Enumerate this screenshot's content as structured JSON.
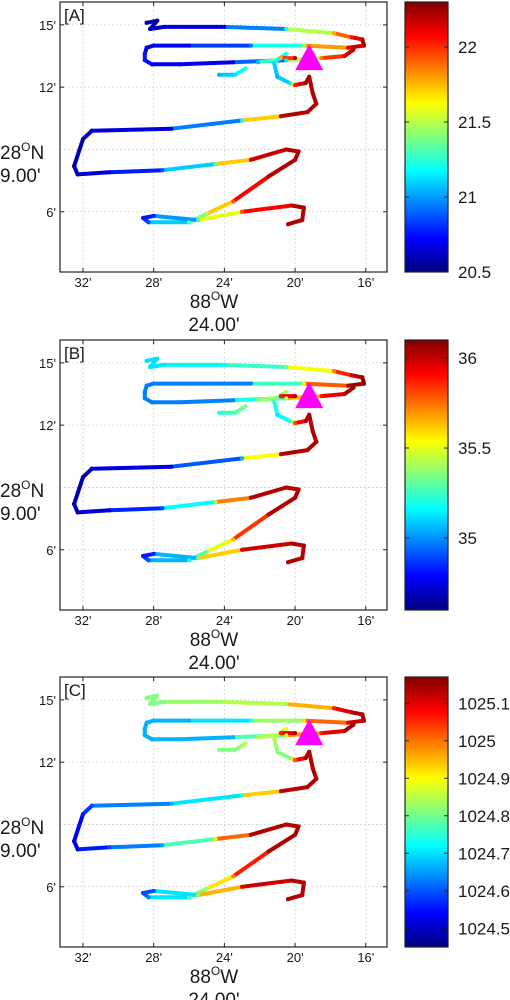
{
  "figure": {
    "panels": [
      {
        "label": "[A]",
        "colorbar_ticks": [
          "22",
          "21.5",
          "21",
          "20.5"
        ]
      },
      {
        "label": "[B]",
        "colorbar_ticks": [
          "36",
          "35.5",
          "35"
        ]
      },
      {
        "label": "[C]",
        "colorbar_ticks": [
          "1025.1",
          "1025",
          "1024.9",
          "1024.8",
          "1024.7",
          "1024.6",
          "1024.5"
        ]
      }
    ],
    "y_ticks": [
      "15'",
      "12'",
      "6'"
    ],
    "x_ticks": [
      "32'",
      "28'",
      "24'",
      "20'",
      "16'"
    ],
    "lat_label": {
      "main": "28",
      "sup": "O",
      "dir": "N",
      "sub": "9.00'"
    },
    "lon_label": {
      "main": "88",
      "sup": "O",
      "dir": "W",
      "sub": "24.00'"
    },
    "marker_color": "#ff00ff",
    "colormap": "jet"
  },
  "chart_data": [
    {
      "type": "scatter",
      "panel": "[A]",
      "x_unit": "minutes west of 88°W",
      "y_unit": "minutes north of 28°N",
      "xlim": [
        33.3,
        14.8
      ],
      "ylim": [
        3.1,
        16.1
      ],
      "x_ticks": [
        32,
        28,
        24,
        20,
        16
      ],
      "y_ticks": [
        15,
        12,
        6
      ],
      "colorbar": {
        "min": 20.5,
        "max": 22.3,
        "ticks": [
          22,
          21.5,
          21,
          20.5
        ]
      },
      "marker": {
        "shape": "triangle",
        "x": 19.2,
        "y": 13.4,
        "color": "#ff00ff"
      }
    },
    {
      "type": "scatter",
      "panel": "[B]",
      "x_unit": "minutes west of 88°W",
      "y_unit": "minutes north of 28°N",
      "xlim": [
        33.3,
        14.8
      ],
      "ylim": [
        3.1,
        16.1
      ],
      "x_ticks": [
        32,
        28,
        24,
        20,
        16
      ],
      "y_ticks": [
        15,
        12,
        6
      ],
      "colorbar": {
        "min": 34.6,
        "max": 36.1,
        "ticks": [
          36,
          35.5,
          35
        ]
      },
      "marker": {
        "shape": "triangle",
        "x": 19.2,
        "y": 13.4,
        "color": "#ff00ff"
      }
    },
    {
      "type": "scatter",
      "panel": "[C]",
      "x_unit": "minutes west of 88°W",
      "y_unit": "minutes north of 28°N",
      "xlim": [
        33.3,
        14.8
      ],
      "ylim": [
        3.1,
        16.1
      ],
      "x_ticks": [
        32,
        28,
        24,
        20,
        16
      ],
      "y_ticks": [
        15,
        12,
        6
      ],
      "colorbar": {
        "min": 1024.45,
        "max": 1025.17,
        "ticks": [
          1025.1,
          1025,
          1024.9,
          1024.8,
          1024.7,
          1024.6,
          1024.5
        ]
      },
      "marker": {
        "shape": "triangle",
        "x": 19.2,
        "y": 13.4,
        "color": "#ff00ff"
      }
    }
  ],
  "track": {
    "note_units": "points are [x (minutes W), y (minutes N), normalized color 0-1 per panel A,B,C]",
    "segments": [
      [
        [
          28.4,
          15.1,
          0.05,
          0.35,
          0.5
        ],
        [
          27.8,
          15.2,
          0.05,
          0.35,
          0.5
        ],
        [
          28.2,
          14.8,
          0.05,
          0.35,
          0.5
        ],
        [
          27.4,
          14.9,
          0.08,
          0.35,
          0.5
        ],
        [
          24.0,
          14.9,
          0.1,
          0.38,
          0.55
        ],
        [
          20.5,
          14.8,
          0.4,
          0.48,
          0.55
        ],
        [
          17.8,
          14.6,
          0.7,
          0.75,
          0.85
        ],
        [
          16.8,
          14.4,
          0.85,
          0.92,
          0.95
        ],
        [
          16.2,
          14.3,
          0.95,
          0.98,
          0.95
        ],
        [
          16.1,
          14.0,
          0.95,
          0.98,
          0.95
        ],
        [
          17.0,
          13.9,
          0.9,
          0.95,
          0.9
        ],
        [
          19.5,
          14.0,
          0.55,
          0.62,
          0.65
        ],
        [
          22.5,
          14.0,
          0.25,
          0.25,
          0.4
        ],
        [
          26.0,
          14.0,
          0.12,
          0.25,
          0.3
        ],
        [
          28.0,
          14.0,
          0.1,
          0.25,
          0.3
        ],
        [
          28.4,
          13.9,
          0.1,
          0.25,
          0.3
        ],
        [
          28.5,
          13.6,
          0.15,
          0.25,
          0.3
        ],
        [
          28.5,
          13.3,
          0.15,
          0.25,
          0.3
        ],
        [
          28.1,
          13.1,
          0.12,
          0.25,
          0.3
        ],
        [
          26.5,
          13.1,
          0.1,
          0.25,
          0.3
        ],
        [
          23.5,
          13.2,
          0.1,
          0.25,
          0.3
        ],
        [
          20.5,
          13.3,
          0.35,
          0.55,
          0.6
        ],
        [
          18.5,
          13.4,
          0.75,
          0.85,
          0.85
        ],
        [
          17.2,
          13.5,
          0.9,
          0.95,
          0.95
        ],
        [
          16.7,
          13.8,
          0.95,
          0.98,
          0.98
        ]
      ],
      [
        [
          22.1,
          13.2,
          0.3,
          0.5,
          0.55
        ],
        [
          21.2,
          13.3,
          0.55,
          0.55,
          0.55
        ]
      ],
      [
        [
          20.5,
          13.6,
          0.4,
          0.55,
          0.6
        ],
        [
          21.2,
          13.2,
          0.35,
          0.45,
          0.55
        ],
        [
          21.0,
          12.5,
          0.3,
          0.35,
          0.5
        ],
        [
          20.3,
          12.2,
          0.35,
          0.4,
          0.5
        ],
        [
          20.0,
          12.1,
          0.85,
          0.8,
          0.8
        ],
        [
          19.4,
          12.2,
          0.95,
          0.95,
          0.95
        ],
        [
          19.2,
          12.5,
          0.95,
          0.95,
          0.95
        ],
        [
          19.0,
          11.7,
          0.95,
          0.95,
          0.95
        ],
        [
          18.8,
          11.2,
          0.95,
          0.95,
          0.95
        ],
        [
          19.3,
          10.8,
          0.95,
          0.95,
          0.95
        ],
        [
          20.8,
          10.6,
          0.95,
          0.95,
          0.95
        ],
        [
          23.0,
          10.4,
          0.4,
          0.3,
          0.4
        ],
        [
          27.0,
          10.0,
          0.1,
          0.12,
          0.3
        ],
        [
          31.5,
          9.9,
          0.08,
          0.08,
          0.2
        ],
        [
          32.0,
          9.5,
          0.05,
          0.05,
          0.15
        ],
        [
          32.5,
          8.2,
          0.05,
          0.05,
          0.1
        ],
        [
          32.3,
          7.8,
          0.05,
          0.05,
          0.1
        ],
        [
          30.5,
          7.9,
          0.1,
          0.12,
          0.2
        ],
        [
          27.5,
          8.0,
          0.2,
          0.2,
          0.3
        ],
        [
          24.5,
          8.3,
          0.45,
          0.55,
          0.6
        ],
        [
          22.5,
          8.5,
          0.9,
          0.95,
          0.95
        ],
        [
          20.5,
          9.0,
          0.95,
          0.95,
          0.95
        ],
        [
          19.8,
          8.9,
          0.95,
          0.95,
          0.95
        ],
        [
          20.0,
          8.5,
          0.95,
          0.95,
          0.95
        ],
        [
          21.5,
          7.7,
          0.95,
          0.95,
          0.95
        ],
        [
          23.5,
          6.5,
          0.8,
          0.7,
          0.75
        ],
        [
          25.0,
          5.9,
          0.55,
          0.5,
          0.55
        ],
        [
          26.0,
          5.5,
          0.45,
          0.4,
          0.45
        ],
        [
          28.3,
          5.5,
          0.2,
          0.2,
          0.25
        ],
        [
          28.6,
          5.7,
          0.15,
          0.15,
          0.2
        ],
        [
          28.0,
          5.8,
          0.15,
          0.15,
          0.2
        ],
        [
          25.5,
          5.6,
          0.4,
          0.45,
          0.5
        ],
        [
          23.0,
          6.0,
          0.8,
          0.9,
          0.9
        ],
        [
          20.2,
          6.3,
          0.95,
          0.95,
          0.95
        ],
        [
          19.5,
          6.2,
          0.95,
          0.95,
          0.95
        ],
        [
          19.6,
          5.6,
          0.95,
          0.95,
          0.95
        ],
        [
          20.4,
          5.4,
          0.95,
          0.95,
          0.95
        ]
      ],
      [
        [
          24.3,
          12.6,
          0.3,
          0.4,
          0.5
        ],
        [
          23.4,
          12.6,
          0.35,
          0.45,
          0.5
        ],
        [
          22.8,
          12.9,
          0.4,
          0.5,
          0.55
        ]
      ],
      [
        [
          20.8,
          13.4,
          0.7,
          0.85,
          0.85
        ],
        [
          20.0,
          13.4,
          0.95,
          0.95,
          0.95
        ]
      ]
    ]
  }
}
